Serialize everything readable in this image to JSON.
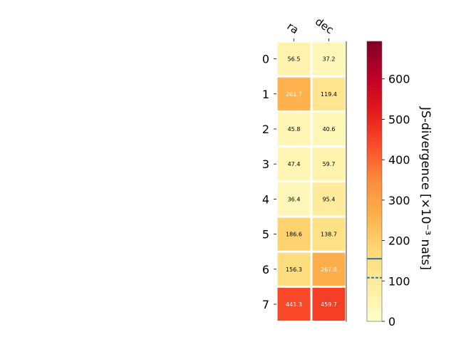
{
  "chart_data": {
    "type": "heatmap",
    "columns": [
      "ra",
      "dec"
    ],
    "rows": [
      "0",
      "1",
      "2",
      "3",
      "4",
      "5",
      "6",
      "7"
    ],
    "values": [
      [
        56.5,
        37.2
      ],
      [
        261.7,
        119.4
      ],
      [
        45.8,
        40.6
      ],
      [
        47.4,
        59.7
      ],
      [
        36.4,
        95.4
      ],
      [
        186.6,
        138.7
      ],
      [
        156.3,
        267.8
      ],
      [
        441.3,
        459.7
      ]
    ],
    "cell_labels": [
      [
        "56.5",
        "37.2"
      ],
      [
        "261.7",
        "119.4"
      ],
      [
        "45.8",
        "40.6"
      ],
      [
        "47.4",
        "59.7"
      ],
      [
        "36.4",
        "95.4"
      ],
      [
        "186.6",
        "138.7"
      ],
      [
        "156.3",
        "267.8"
      ],
      [
        "441.3",
        "459.7"
      ]
    ],
    "colormap": "YlOrRd",
    "colorbar": {
      "label": "JS-divergence [×10⁻³ nats]",
      "range": [
        0,
        693
      ],
      "ticks": [
        0,
        100,
        200,
        300,
        400,
        500,
        600
      ],
      "tick_labels": [
        "0",
        "100",
        "200",
        "300",
        "400",
        "500",
        "600"
      ],
      "markers": [
        {
          "value": 155,
          "style": "solid",
          "color": "#1f77b4"
        },
        {
          "value": 108,
          "style": "dashed",
          "color": "#1f77b4"
        }
      ]
    },
    "legend": "none",
    "grid": false
  }
}
